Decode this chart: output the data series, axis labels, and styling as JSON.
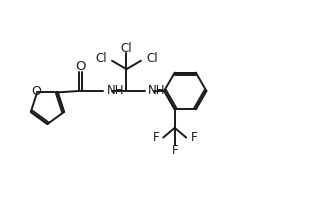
{
  "bg_color": "#ffffff",
  "line_color": "#1a1a1a",
  "line_width": 1.4,
  "font_size": 8.5,
  "figsize": [
    3.18,
    1.98
  ],
  "dpi": 100,
  "xlim": [
    0,
    10.5
  ],
  "ylim": [
    0,
    6.5
  ]
}
